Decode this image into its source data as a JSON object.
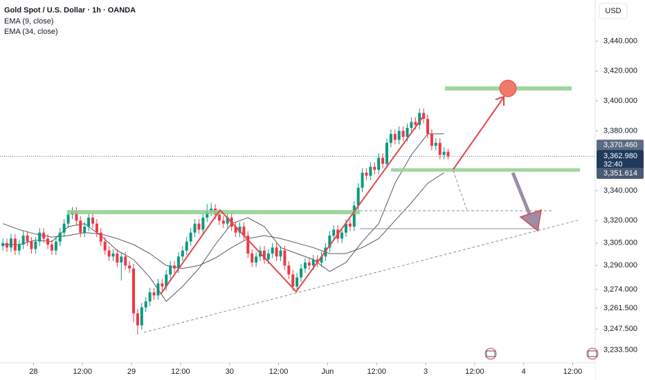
{
  "chart_data": {
    "type": "candlestick",
    "title": "Gold Spot / U.S. Dollar · 1h · OANDA",
    "currency_button": "USD",
    "up_color": "#089981",
    "down_color": "#f23645",
    "grid": false,
    "xlim": [
      -0.7,
      145
    ],
    "ylim": [
      3225,
      3467.5
    ],
    "ohlc": [
      [
        3303,
        3308,
        3300,
        3305
      ],
      [
        3305,
        3308,
        3299,
        3302
      ],
      [
        3302,
        3311,
        3299,
        3308
      ],
      [
        3308,
        3311,
        3297,
        3300
      ],
      [
        3300,
        3307,
        3297,
        3304
      ],
      [
        3304,
        3313,
        3301,
        3310
      ],
      [
        3310,
        3313,
        3303,
        3306
      ],
      [
        3306,
        3309,
        3298,
        3301
      ],
      [
        3301,
        3309,
        3298,
        3306
      ],
      [
        3306,
        3315,
        3303,
        3312
      ],
      [
        3312,
        3315,
        3305,
        3308
      ],
      [
        3308,
        3311,
        3301,
        3304
      ],
      [
        3304,
        3307,
        3297,
        3300
      ],
      [
        3300,
        3309,
        3297,
        3306
      ],
      [
        3306,
        3315,
        3303,
        3312
      ],
      [
        3312,
        3321,
        3309,
        3318
      ],
      [
        3318,
        3327,
        3315,
        3324
      ],
      [
        3324,
        3329,
        3321,
        3326
      ],
      [
        3326,
        3329,
        3317,
        3320
      ],
      [
        3320,
        3323,
        3309,
        3312
      ],
      [
        3312,
        3319,
        3309,
        3316
      ],
      [
        3316,
        3325,
        3313,
        3322
      ],
      [
        3322,
        3325,
        3315,
        3318
      ],
      [
        3318,
        3321,
        3309,
        3312
      ],
      [
        3312,
        3315,
        3303,
        3306
      ],
      [
        3306,
        3309,
        3297,
        3300
      ],
      [
        3300,
        3303,
        3293,
        3296
      ],
      [
        3296,
        3301,
        3293,
        3298
      ],
      [
        3298,
        3301,
        3289,
        3292
      ],
      [
        3292,
        3299,
        3280,
        3296
      ],
      [
        3296,
        3299,
        3287,
        3290
      ],
      [
        3290,
        3293,
        3285,
        3288
      ],
      [
        3288,
        3291,
        3252,
        3258
      ],
      [
        3258,
        3261,
        3244,
        3250
      ],
      [
        3250,
        3265,
        3247,
        3262
      ],
      [
        3262,
        3269,
        3259,
        3266
      ],
      [
        3266,
        3275,
        3263,
        3272
      ],
      [
        3272,
        3275,
        3267,
        3270
      ],
      [
        3270,
        3281,
        3267,
        3278
      ],
      [
        3278,
        3281,
        3273,
        3276
      ],
      [
        3276,
        3287,
        3273,
        3284
      ],
      [
        3284,
        3293,
        3281,
        3290
      ],
      [
        3290,
        3293,
        3285,
        3288
      ],
      [
        3288,
        3299,
        3285,
        3296
      ],
      [
        3296,
        3303,
        3293,
        3300
      ],
      [
        3300,
        3309,
        3297,
        3306
      ],
      [
        3306,
        3315,
        3303,
        3312
      ],
      [
        3312,
        3321,
        3309,
        3318
      ],
      [
        3318,
        3321,
        3311,
        3314
      ],
      [
        3314,
        3325,
        3311,
        3322
      ],
      [
        3322,
        3331,
        3319,
        3326
      ],
      [
        3326,
        3332,
        3323,
        3328
      ],
      [
        3328,
        3331,
        3321,
        3324
      ],
      [
        3324,
        3327,
        3317,
        3320
      ],
      [
        3320,
        3323,
        3315,
        3318
      ],
      [
        3318,
        3325,
        3315,
        3322
      ],
      [
        3322,
        3325,
        3313,
        3316
      ],
      [
        3316,
        3319,
        3309,
        3312
      ],
      [
        3312,
        3319,
        3309,
        3316
      ],
      [
        3316,
        3319,
        3307,
        3310
      ],
      [
        3310,
        3313,
        3295,
        3298
      ],
      [
        3298,
        3301,
        3289,
        3292
      ],
      [
        3292,
        3299,
        3289,
        3296
      ],
      [
        3296,
        3303,
        3293,
        3300
      ],
      [
        3300,
        3303,
        3291,
        3294
      ],
      [
        3294,
        3301,
        3291,
        3298
      ],
      [
        3298,
        3305,
        3295,
        3302
      ],
      [
        3302,
        3305,
        3293,
        3296
      ],
      [
        3296,
        3303,
        3293,
        3300
      ],
      [
        3300,
        3303,
        3287,
        3290
      ],
      [
        3290,
        3293,
        3281,
        3284
      ],
      [
        3284,
        3287,
        3273,
        3276
      ],
      [
        3276,
        3285,
        3273,
        3282
      ],
      [
        3282,
        3291,
        3279,
        3288
      ],
      [
        3288,
        3295,
        3285,
        3292
      ],
      [
        3292,
        3295,
        3287,
        3290
      ],
      [
        3290,
        3297,
        3287,
        3294
      ],
      [
        3294,
        3297,
        3289,
        3292
      ],
      [
        3292,
        3299,
        3289,
        3296
      ],
      [
        3296,
        3305,
        3293,
        3302
      ],
      [
        3302,
        3313,
        3299,
        3310
      ],
      [
        3310,
        3317,
        3307,
        3314
      ],
      [
        3314,
        3317,
        3305,
        3308
      ],
      [
        3308,
        3315,
        3305,
        3312
      ],
      [
        3312,
        3321,
        3309,
        3318
      ],
      [
        3318,
        3321,
        3313,
        3316
      ],
      [
        3316,
        3333,
        3313,
        3330
      ],
      [
        3330,
        3345,
        3327,
        3342
      ],
      [
        3342,
        3355,
        3339,
        3352
      ],
      [
        3352,
        3355,
        3347,
        3350
      ],
      [
        3350,
        3359,
        3347,
        3356
      ],
      [
        3356,
        3359,
        3351,
        3354
      ],
      [
        3354,
        3365,
        3351,
        3362
      ],
      [
        3362,
        3365,
        3355,
        3358
      ],
      [
        3358,
        3375,
        3355,
        3372
      ],
      [
        3372,
        3381,
        3369,
        3378
      ],
      [
        3378,
        3381,
        3371,
        3374
      ],
      [
        3374,
        3383,
        3371,
        3380
      ],
      [
        3380,
        3383,
        3373,
        3376
      ],
      [
        3376,
        3385,
        3373,
        3382
      ],
      [
        3382,
        3389,
        3379,
        3386
      ],
      [
        3386,
        3389,
        3381,
        3384
      ],
      [
        3384,
        3395,
        3381,
        3392
      ],
      [
        3392,
        3395,
        3385,
        3388
      ],
      [
        3388,
        3391,
        3375,
        3378
      ],
      [
        3378,
        3381,
        3367,
        3370
      ],
      [
        3370,
        3375,
        3367,
        3372
      ],
      [
        3372,
        3375,
        3361,
        3364
      ],
      [
        3364,
        3369,
        3361,
        3366
      ],
      [
        3366,
        3368,
        3361,
        3363
      ]
    ],
    "series": [
      {
        "name": "EMA (9, close)",
        "color": "#2a2e39",
        "x": [
          0,
          4,
          8,
          12,
          16,
          20,
          24,
          28,
          32,
          36,
          40,
          44,
          48,
          52,
          56,
          60,
          64,
          68,
          72,
          76,
          80,
          84,
          88,
          92,
          96,
          100,
          104,
          108
        ],
        "values": [
          3304,
          3304,
          3307,
          3306,
          3316,
          3318,
          3310,
          3300,
          3294,
          3282,
          3266,
          3276,
          3288,
          3304,
          3318,
          3322,
          3316,
          3302,
          3298,
          3294,
          3286,
          3292,
          3306,
          3318,
          3345,
          3364,
          3378,
          3378
        ]
      },
      {
        "name": "EMA (34, close)",
        "color": "#2a2e39",
        "x": [
          0,
          4,
          8,
          12,
          16,
          20,
          24,
          28,
          32,
          36,
          40,
          44,
          48,
          52,
          56,
          60,
          64,
          68,
          72,
          76,
          80,
          84,
          88,
          92,
          96,
          100,
          104,
          108
        ],
        "values": [
          3318,
          3314,
          3311,
          3309,
          3310,
          3312,
          3311,
          3308,
          3304,
          3298,
          3290,
          3288,
          3290,
          3295,
          3302,
          3308,
          3310,
          3308,
          3305,
          3302,
          3298,
          3298,
          3302,
          3308,
          3320,
          3332,
          3345,
          3352
        ]
      }
    ],
    "yticks": [
      {
        "value": 3440,
        "label": "3,440.000"
      },
      {
        "value": 3420,
        "label": "3,420.000"
      },
      {
        "value": 3400,
        "label": "3,400.000"
      },
      {
        "value": 3380,
        "label": "3,380.000"
      },
      {
        "value": 3340,
        "label": "3,340.000"
      },
      {
        "value": 3320,
        "label": "3,320.000"
      },
      {
        "value": 3305,
        "label": "3,305.000"
      },
      {
        "value": 3290,
        "label": "3,290.000"
      },
      {
        "value": 3274,
        "label": "3,274.000"
      },
      {
        "value": 3261.5,
        "label": "3,261.500"
      },
      {
        "value": 3247.5,
        "label": "3,247.500"
      },
      {
        "value": 3233.5,
        "label": "3,233.500"
      }
    ],
    "xticks": [
      {
        "value": 7.5,
        "label": "28"
      },
      {
        "value": 19.5,
        "label": "12:00"
      },
      {
        "value": 31.5,
        "label": "29"
      },
      {
        "value": 43.5,
        "label": "12:00"
      },
      {
        "value": 55.5,
        "label": "30"
      },
      {
        "value": 67.5,
        "label": "12:00"
      },
      {
        "value": 79.5,
        "label": "Jun"
      },
      {
        "value": 91.5,
        "label": "12:00"
      },
      {
        "value": 103.5,
        "label": "3"
      },
      {
        "value": 115.5,
        "label": "12:00"
      },
      {
        "value": 127.5,
        "label": "4"
      },
      {
        "value": 139.5,
        "label": "12:00"
      }
    ],
    "price_tags": [
      {
        "value": 3370.46,
        "label": "3,370.460",
        "color": "#5d6b82"
      },
      {
        "value": 3362.98,
        "label": "3,362.980",
        "countdown": "32:40",
        "color": "#1f3a5c"
      },
      {
        "value": 3351.614,
        "label": "3,351.614",
        "color": "#4b5a73"
      }
    ]
  }
}
